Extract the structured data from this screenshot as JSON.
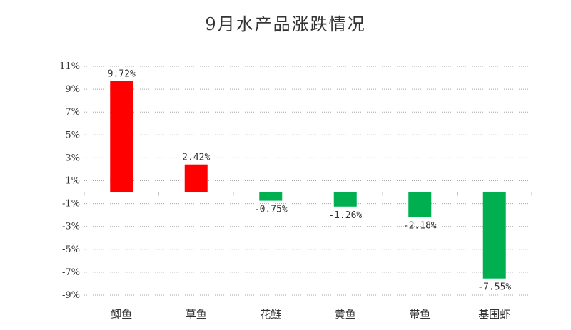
{
  "chart_data": {
    "type": "bar",
    "title": "9月水产品涨跌情况",
    "categories": [
      "鲫鱼",
      "草鱼",
      "花鲢",
      "黄鱼",
      "带鱼",
      "基围虾"
    ],
    "values": [
      9.72,
      2.42,
      -0.75,
      -1.26,
      -2.18,
      -7.55
    ],
    "data_labels": [
      "9.72%",
      "2.42%",
      "-0.75%",
      "-1.26%",
      "-2.18%",
      "-7.55%"
    ],
    "yticks": [
      11,
      9,
      7,
      5,
      3,
      1,
      -1,
      -3,
      -5,
      -7,
      -9
    ],
    "ytick_labels": [
      "11%",
      "9%",
      "7%",
      "5%",
      "3%",
      "1%",
      "-1%",
      "-3%",
      "-5%",
      "-7%",
      "-9%"
    ],
    "ylim": [
      -9,
      11
    ],
    "xlabel": "",
    "ylabel": "",
    "grid": true,
    "legend": "none",
    "colors": {
      "positive": "#ff0000",
      "negative": "#00b050",
      "grid": "#a6a6a6",
      "axis": "#bfbfbf",
      "text": "#333333"
    }
  }
}
